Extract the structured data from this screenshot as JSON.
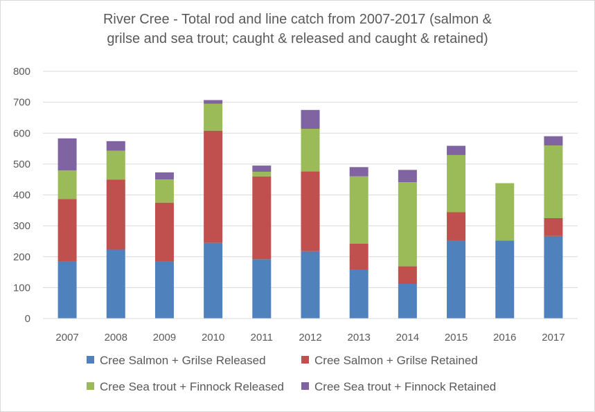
{
  "chart_data": {
    "type": "bar",
    "stacked": true,
    "title_line1": "River Cree - Total rod and line catch from 2007-2017 (salmon &",
    "title_line2": "grilse and sea trout; caught & released and caught & retained)",
    "xlabel": "",
    "ylabel": "",
    "ylim": [
      0,
      800
    ],
    "yticks": [
      0,
      100,
      200,
      300,
      400,
      500,
      600,
      700,
      800
    ],
    "grid": true,
    "legend_position": "bottom",
    "categories": [
      "2007",
      "2008",
      "2009",
      "2010",
      "2011",
      "2012",
      "2013",
      "2014",
      "2015",
      "2016",
      "2017"
    ],
    "series": [
      {
        "name": "Cree Salmon + Grilse Released",
        "color": "#4f81bd",
        "values": [
          185,
          223,
          185,
          245,
          192,
          218,
          157,
          112,
          252,
          252,
          267
        ]
      },
      {
        "name": "Cree Salmon + Grilse Retained",
        "color": "#c0504d",
        "values": [
          202,
          227,
          190,
          363,
          268,
          258,
          85,
          57,
          92,
          0,
          58
        ]
      },
      {
        "name": "Cree Sea trout + Finnock Released",
        "color": "#9bbb59",
        "values": [
          92,
          93,
          75,
          87,
          15,
          138,
          218,
          272,
          185,
          186,
          235
        ]
      },
      {
        "name": "Cree Sea trout + Finnock Retained",
        "color": "#8064a2",
        "values": [
          104,
          31,
          23,
          12,
          20,
          61,
          30,
          40,
          30,
          0,
          30
        ]
      }
    ]
  }
}
